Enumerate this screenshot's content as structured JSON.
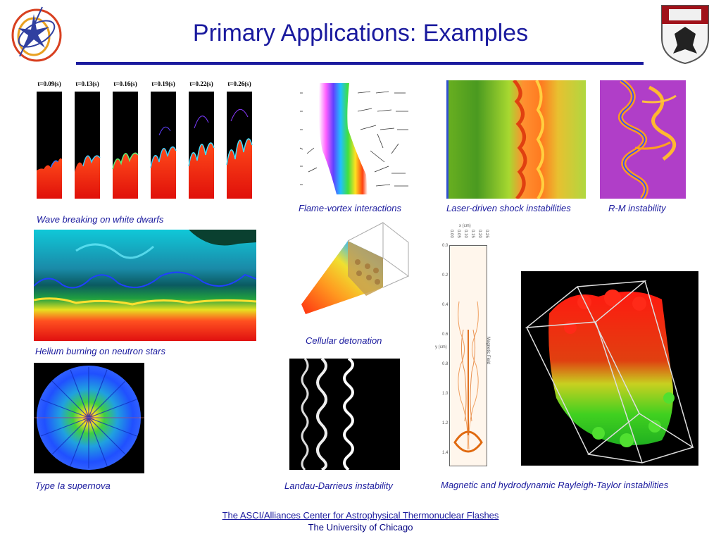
{
  "title": "Primary Applications: Examples",
  "captions": {
    "wave_breaking": "Wave breaking on white dwarfs",
    "flame_vortex": "Flame-vortex interactions",
    "laser_shock": "Laser-driven shock instabilities",
    "rm": "R-M instability",
    "helium": "Helium burning on neutron stars",
    "cellular": "Cellular detonation",
    "supernova": "Type Ia supernova",
    "landau": "Landau-Darrieus instability",
    "mhd_rt": "Magnetic and hydrodynamic Rayleigh-Taylor instabilities"
  },
  "wave_panels": [
    "t=0.09(s)",
    "t=0.13(s)",
    "t=0.16(s)",
    "t=0.19(s)",
    "t=0.22(s)",
    "t=0.26(s)"
  ],
  "mag_plot": {
    "xlabel": "x (cm)",
    "ylabel": "y (cm)",
    "field_label": "Magnetic Field",
    "x_ticks": [
      "0.00",
      "0.05",
      "0.10",
      "0.15",
      "0.20",
      "0.25"
    ],
    "y_ticks": [
      "0.0",
      "0.2",
      "0.4",
      "0.6",
      "0.8",
      "1.0",
      "1.2",
      "1.4"
    ]
  },
  "footer": {
    "link": "The ASCI/Alliances Center for Astrophysical Thermonuclear Flashes",
    "university": "The University of Chicago"
  },
  "colors": {
    "title": "#1a1a9e",
    "rule": "#1a1a9e",
    "caption": "#1a1a9e"
  }
}
